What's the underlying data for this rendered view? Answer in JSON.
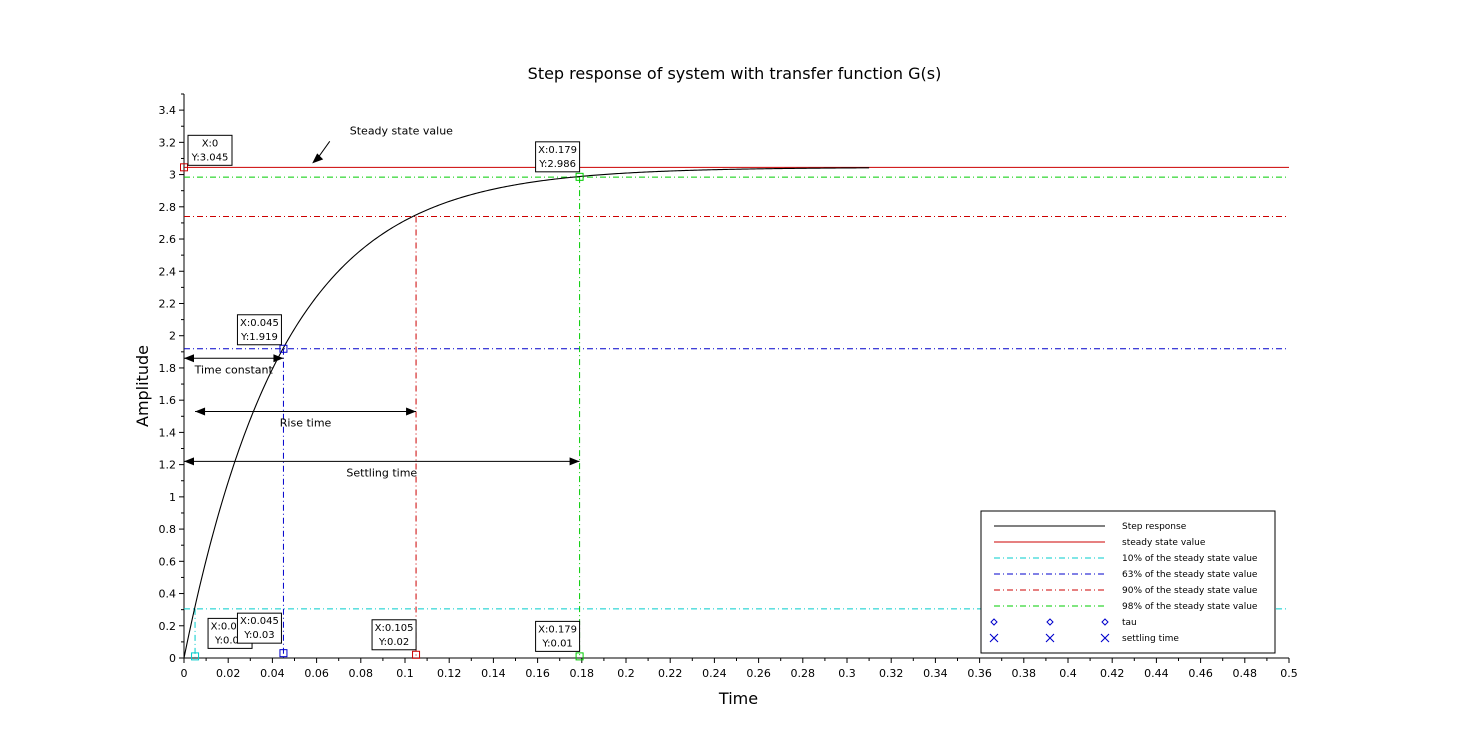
{
  "chart_data": {
    "type": "line",
    "title": "Step response of system with transfer function G(s)",
    "xlabel": "Time",
    "ylabel": "Amplitude",
    "xlim": [
      0,
      0.5
    ],
    "ylim": [
      0,
      3.5
    ],
    "xticks": [
      "0",
      "0.02",
      "0.04",
      "0.06",
      "0.08",
      "0.1",
      "0.12",
      "0.14",
      "0.16",
      "0.18",
      "0.2",
      "0.22",
      "0.24",
      "0.26",
      "0.28",
      "0.3",
      "0.32",
      "0.34",
      "0.36",
      "0.38",
      "0.4",
      "0.42",
      "0.44",
      "0.46",
      "0.48",
      "0.5"
    ],
    "yticks": [
      "0",
      "0.2",
      "0.4",
      "0.6",
      "0.8",
      "1",
      "1.2",
      "1.4",
      "1.6",
      "1.8",
      "2",
      "2.2",
      "2.4",
      "2.6",
      "2.8",
      "3",
      "3.2",
      "3.4"
    ],
    "grid": false,
    "legend_position": "bottom-right",
    "step_response": {
      "steady_state": 3.045,
      "time_constant": 0.045,
      "t_end": 0.31,
      "color": "#000000"
    },
    "series": [
      {
        "name": "Step response",
        "color": "#000000",
        "style": "solid"
      },
      {
        "name": "steady state value",
        "color": "#cc0000",
        "style": "solid",
        "y": 3.045
      },
      {
        "name": "10% of the steady state value",
        "color": "#00cccc",
        "style": "dashdot",
        "y": 0.3045,
        "x": 0.005
      },
      {
        "name": "63% of the steady state value",
        "color": "#0000cc",
        "style": "dashdot",
        "y": 1.919,
        "x": 0.045
      },
      {
        "name": "90% of the steady state value",
        "color": "#cc0000",
        "style": "dashdot",
        "y": 2.74,
        "x": 0.105
      },
      {
        "name": "98% of the steady state value",
        "color": "#00cc00",
        "style": "dashdot",
        "y": 2.984,
        "x": 0.179
      },
      {
        "name": "tau",
        "color": "#0000cc",
        "style": "diamond"
      },
      {
        "name": "settling time",
        "color": "#0000cc",
        "style": "cross"
      }
    ],
    "datatips": [
      {
        "x": 0,
        "y": 3.045,
        "lines": [
          "X:0",
          "Y:3.045"
        ],
        "color": "#cc0000"
      },
      {
        "x": 0.179,
        "y": 2.986,
        "lines": [
          "X:0.179",
          "Y:2.986"
        ],
        "color": "#00cc00"
      },
      {
        "x": 0.045,
        "y": 1.919,
        "lines": [
          "X:0.045",
          "Y:1.919"
        ],
        "color": "#0000cc"
      },
      {
        "x": 0.005,
        "y": 0.01,
        "lines": [
          "X:0.005",
          "Y:0.01"
        ],
        "color": "#00cccc"
      },
      {
        "x": 0.045,
        "y": 0.03,
        "lines": [
          "X:0.045",
          "Y:0.03"
        ],
        "color": "#0000cc"
      },
      {
        "x": 0.105,
        "y": 0.02,
        "lines": [
          "X:0.105",
          "Y:0.02"
        ],
        "color": "#cc0000"
      },
      {
        "x": 0.179,
        "y": 0.01,
        "lines": [
          "X:0.179",
          "Y:0.01"
        ],
        "color": "#00cc00"
      }
    ],
    "annotations": [
      {
        "text": "Steady state value",
        "type": "arrow-label",
        "arrow_to": [
          0.058,
          3.045
        ],
        "label_at": [
          0.075,
          3.25
        ]
      },
      {
        "text": "Time constant",
        "type": "span",
        "x1": 0,
        "x2": 0.045,
        "y": 1.86
      },
      {
        "text": "Rise time",
        "type": "span",
        "x1": 0.005,
        "x2": 0.105,
        "y": 1.53
      },
      {
        "text": "Settling time",
        "type": "span",
        "x1": 0,
        "x2": 0.179,
        "y": 1.22
      }
    ]
  }
}
